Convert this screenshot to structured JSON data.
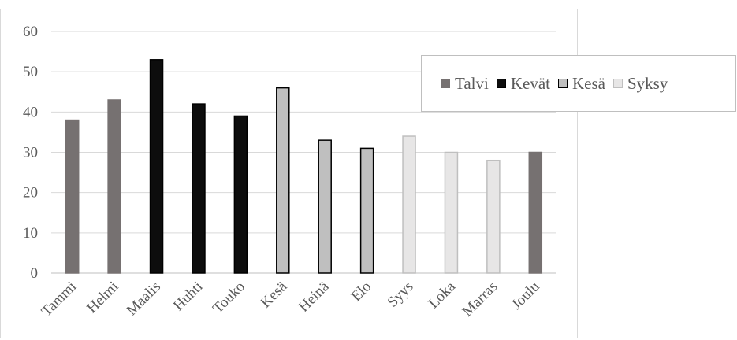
{
  "chart_data": {
    "type": "bar",
    "categories": [
      "Tammi",
      "Helmi",
      "Maalis",
      "Huhti",
      "Touko",
      "Kesä",
      "Heinä",
      "Elo",
      "Syys",
      "Loka",
      "Marras",
      "Joulu"
    ],
    "values": [
      38,
      43,
      53,
      42,
      39,
      46,
      33,
      31,
      34,
      30,
      28,
      30
    ],
    "season_of_category": [
      "Talvi",
      "Talvi",
      "Kevät",
      "Kevät",
      "Kevät",
      "Kesä",
      "Kesä",
      "Kesä",
      "Syksy",
      "Syksy",
      "Syksy",
      "Talvi"
    ],
    "seasons": [
      {
        "name": "Talvi",
        "fill": "#767171",
        "stroke": "#767171"
      },
      {
        "name": "Kevät",
        "fill": "#0d0d0d",
        "stroke": "#000000"
      },
      {
        "name": "Kesä",
        "fill": "#bfbfbf",
        "stroke": "#000000"
      },
      {
        "name": "Syksy",
        "fill": "#e7e6e6",
        "stroke": "#bfbfbf"
      }
    ],
    "ylim": [
      0,
      60
    ],
    "yticks": [
      0,
      10,
      20,
      30,
      40,
      50,
      60
    ],
    "grid": true,
    "legend_position": "right",
    "title": "",
    "xlabel": "",
    "ylabel": ""
  }
}
